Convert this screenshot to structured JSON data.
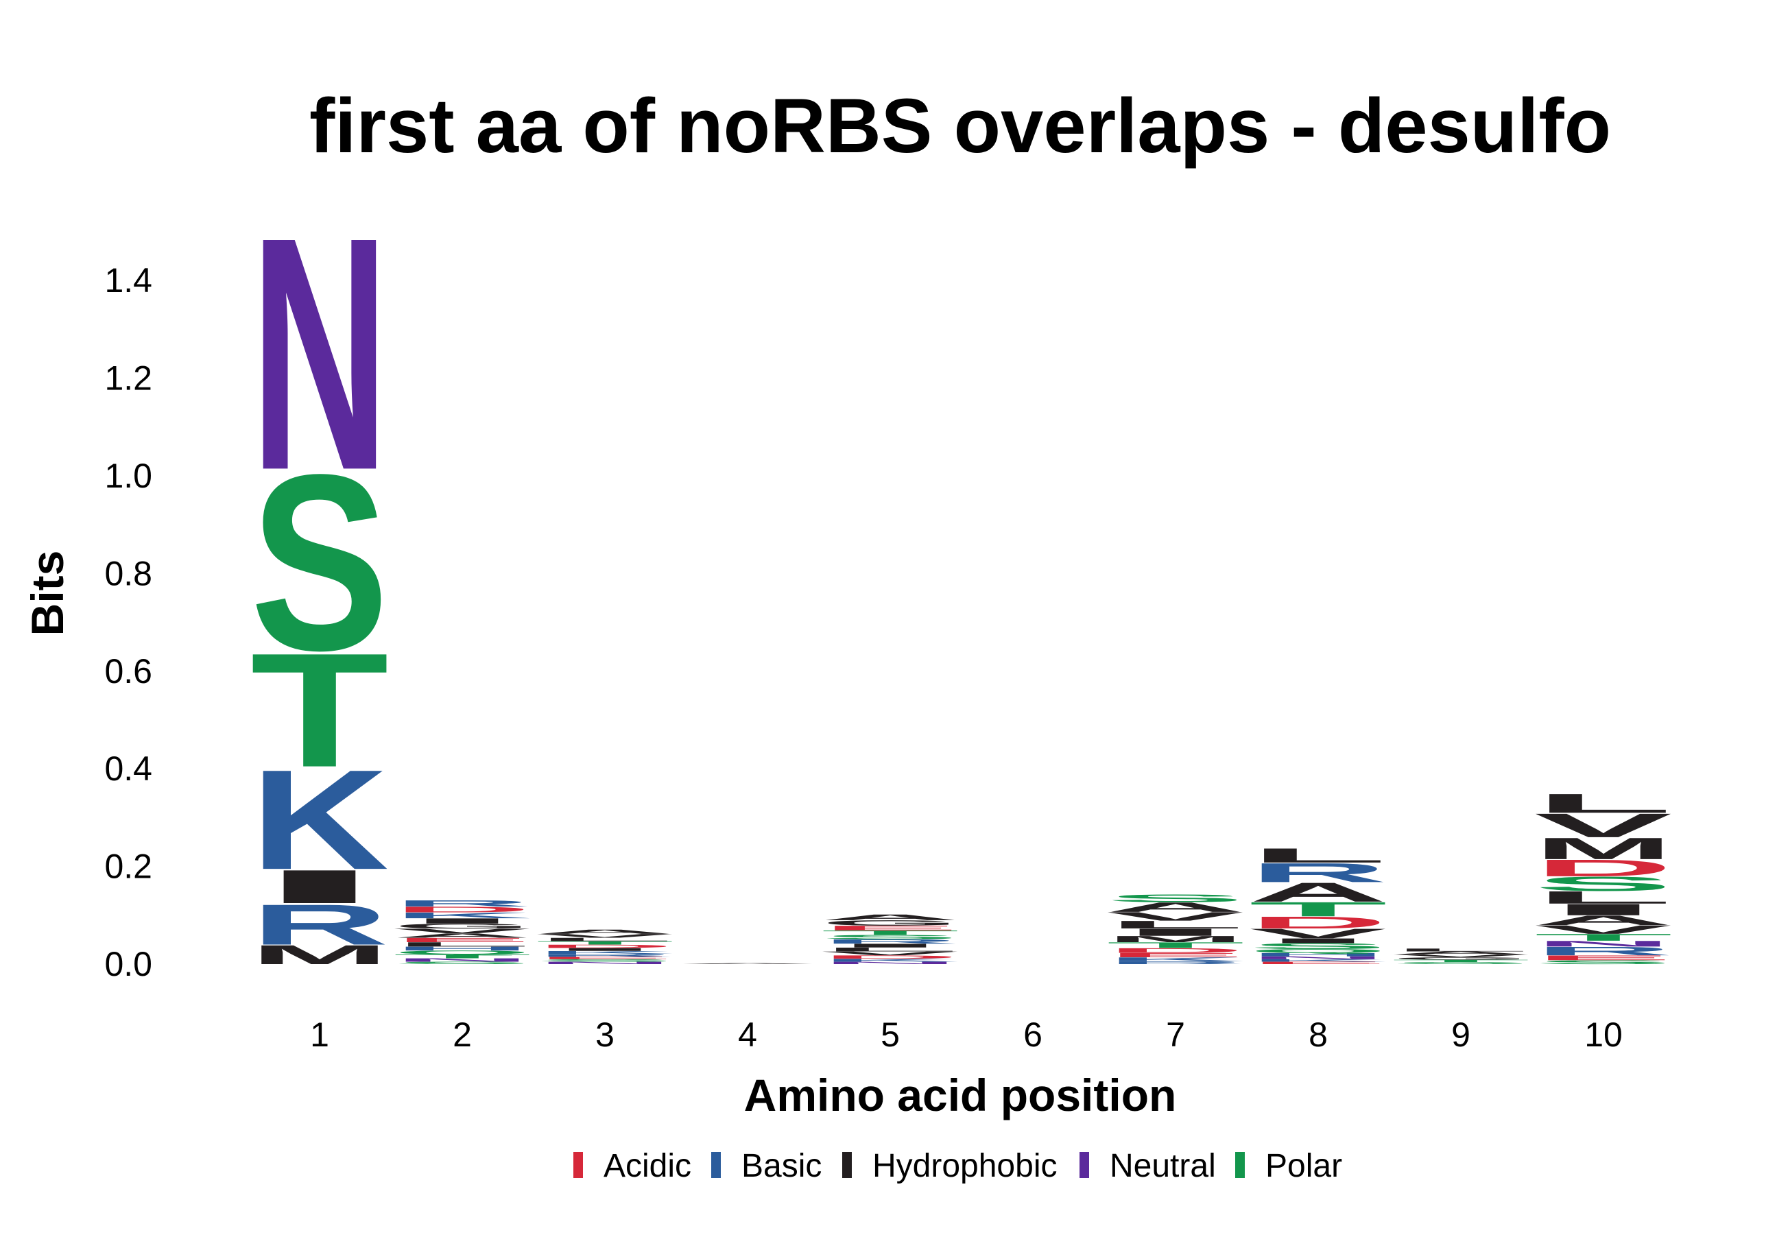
{
  "chart_data": {
    "type": "sequence-logo",
    "title": "first aa of noRBS overlaps - desulfo",
    "xlabel": "Amino acid position",
    "ylabel": "Bits",
    "ylim": [
      0,
      1.5
    ],
    "yticks": [
      "0.0",
      "0.2",
      "0.4",
      "0.6",
      "0.8",
      "1.0",
      "1.2",
      "1.4"
    ],
    "positions": [
      "1",
      "2",
      "3",
      "4",
      "5",
      "6",
      "7",
      "8",
      "9",
      "10"
    ],
    "groups": {
      "Acidic": "#d62839",
      "Basic": "#2b5c9c",
      "Hydrophobic": "#231f20",
      "Neutral": "#5b2a9c",
      "Polar": "#13964c"
    },
    "legend": [
      "Acidic",
      "Basic",
      "Hydrophobic",
      "Neutral",
      "Polar"
    ],
    "stacks": [
      [
        [
          "M",
          0.04,
          "Hydrophobic"
        ],
        [
          "R",
          0.085,
          "Basic"
        ],
        [
          "I",
          0.07,
          "Hydrophobic"
        ],
        [
          "K",
          0.21,
          "Basic"
        ],
        [
          "T",
          0.24,
          "Polar"
        ],
        [
          "S",
          0.37,
          "Polar"
        ],
        [
          "N",
          0.49,
          "Neutral"
        ]
      ],
      [
        [
          "S",
          0.005,
          "Polar"
        ],
        [
          "N",
          0.007,
          "Neutral"
        ],
        [
          "T",
          0.008,
          "Polar"
        ],
        [
          "Q",
          0.008,
          "Polar"
        ],
        [
          "H",
          0.008,
          "Basic"
        ],
        [
          "L",
          0.009,
          "Hydrophobic"
        ],
        [
          "E",
          0.009,
          "Acidic"
        ],
        [
          "A",
          0.009,
          "Hydrophobic"
        ],
        [
          "V",
          0.01,
          "Hydrophobic"
        ],
        [
          "G",
          0.01,
          "Hydrophobic"
        ],
        [
          "I",
          0.011,
          "Hydrophobic"
        ],
        [
          "K",
          0.012,
          "Basic"
        ],
        [
          "D",
          0.012,
          "Acidic"
        ],
        [
          "R",
          0.013,
          "Basic"
        ]
      ],
      [
        [
          "N",
          0.005,
          "Neutral"
        ],
        [
          "S",
          0.005,
          "Polar"
        ],
        [
          "E",
          0.005,
          "Acidic"
        ],
        [
          "R",
          0.006,
          "Basic"
        ],
        [
          "K",
          0.006,
          "Basic"
        ],
        [
          "I",
          0.006,
          "Hydrophobic"
        ],
        [
          "D",
          0.007,
          "Acidic"
        ],
        [
          "T",
          0.007,
          "Polar"
        ],
        [
          "L",
          0.007,
          "Hydrophobic"
        ],
        [
          "V",
          0.008,
          "Hydrophobic"
        ],
        [
          "A",
          0.009,
          "Hydrophobic"
        ]
      ],
      [
        [
          "A",
          0.002,
          "Hydrophobic"
        ]
      ],
      [
        [
          "N",
          0.005,
          "Neutral"
        ],
        [
          "K",
          0.006,
          "Basic"
        ],
        [
          "D",
          0.007,
          "Acidic"
        ],
        [
          "V",
          0.008,
          "Hydrophobic"
        ],
        [
          "L",
          0.008,
          "Hydrophobic"
        ],
        [
          "I",
          0.008,
          "Hydrophobic"
        ],
        [
          "R",
          0.009,
          "Basic"
        ],
        [
          "S",
          0.009,
          "Polar"
        ],
        [
          "T",
          0.009,
          "Polar"
        ],
        [
          "E",
          0.01,
          "Acidic"
        ],
        [
          "G",
          0.011,
          "Hydrophobic"
        ],
        [
          "A",
          0.012,
          "Hydrophobic"
        ]
      ],
      [],
      [
        [
          "R",
          0.006,
          "Basic"
        ],
        [
          "K",
          0.008,
          "Basic"
        ],
        [
          "E",
          0.009,
          "Acidic"
        ],
        [
          "D",
          0.01,
          "Acidic"
        ],
        [
          "T",
          0.012,
          "Polar"
        ],
        [
          "M",
          0.013,
          "Hydrophobic"
        ],
        [
          "I",
          0.015,
          "Hydrophobic"
        ],
        [
          "L",
          0.016,
          "Hydrophobic"
        ],
        [
          "V",
          0.018,
          "Hydrophobic"
        ],
        [
          "A",
          0.02,
          "Hydrophobic"
        ],
        [
          "S",
          0.016,
          "Polar"
        ]
      ],
      [
        [
          "E",
          0.005,
          "Acidic"
        ],
        [
          "K",
          0.005,
          "Basic"
        ],
        [
          "N",
          0.006,
          "Neutral"
        ],
        [
          "H",
          0.007,
          "Basic"
        ],
        [
          "Q",
          0.008,
          "Polar"
        ],
        [
          "S",
          0.012,
          "Polar"
        ],
        [
          "I",
          0.01,
          "Hydrophobic"
        ],
        [
          "V",
          0.02,
          "Hydrophobic"
        ],
        [
          "D",
          0.025,
          "Acidic"
        ],
        [
          "T",
          0.03,
          "Polar"
        ],
        [
          "A",
          0.04,
          "Hydrophobic"
        ],
        [
          "R",
          0.04,
          "Basic"
        ],
        [
          "L",
          0.03,
          "Hydrophobic"
        ]
      ],
      [
        [
          "S",
          0.004,
          "Polar"
        ],
        [
          "T",
          0.005,
          "Polar"
        ],
        [
          "G",
          0.005,
          "Hydrophobic"
        ],
        [
          "V",
          0.006,
          "Hydrophobic"
        ],
        [
          "A",
          0.006,
          "Hydrophobic"
        ],
        [
          "L",
          0.006,
          "Hydrophobic"
        ]
      ],
      [
        [
          "S",
          0.008,
          "Polar"
        ],
        [
          "E",
          0.01,
          "Acidic"
        ],
        [
          "R",
          0.018,
          "Basic"
        ],
        [
          "N",
          0.012,
          "Neutral"
        ],
        [
          "T",
          0.014,
          "Polar"
        ],
        [
          "V",
          0.018,
          "Hydrophobic"
        ],
        [
          "A",
          0.02,
          "Hydrophobic"
        ],
        [
          "I",
          0.024,
          "Hydrophobic"
        ],
        [
          "L",
          0.026,
          "Hydrophobic"
        ],
        [
          "S",
          0.03,
          "Polar"
        ],
        [
          "D",
          0.035,
          "Acidic"
        ],
        [
          "M",
          0.045,
          "Hydrophobic"
        ],
        [
          "V",
          0.05,
          "Hydrophobic"
        ],
        [
          "L",
          0.04,
          "Hydrophobic"
        ]
      ]
    ]
  }
}
